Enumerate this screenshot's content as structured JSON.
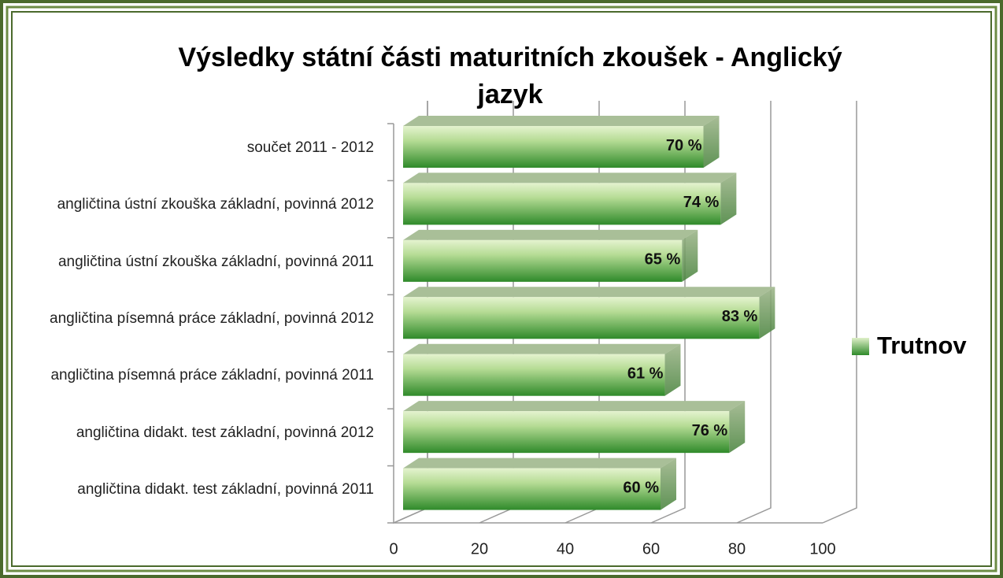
{
  "chart_data": {
    "type": "bar3d-horizontal",
    "title": "Výsledky státní části maturitních zkoušek - Anglický jazyk",
    "categories": [
      "součet 2011 - 2012",
      "angličtina ústní zkouška základní, povinná 2012",
      "angličtina ústní zkouška základní, povinná 2011",
      "angličtina písemná práce základní, povinná 2012",
      "angličtina písemná práce základní, povinná 2011",
      "angličtina didakt. test základní, povinná 2012",
      "angličtina didakt. test základní, povinná 2011"
    ],
    "series": [
      {
        "name": "Trutnov",
        "color": "#3f9a36",
        "values": [
          70,
          74,
          65,
          83,
          61,
          76,
          60
        ],
        "value_labels": [
          "70 %",
          "74 %",
          "65 %",
          "83 %",
          "61 %",
          "76 %",
          "60 %"
        ]
      }
    ],
    "xlim": [
      0,
      100
    ],
    "xticks": [
      0,
      20,
      40,
      60,
      80,
      100
    ],
    "grid": true,
    "legend": "right"
  }
}
